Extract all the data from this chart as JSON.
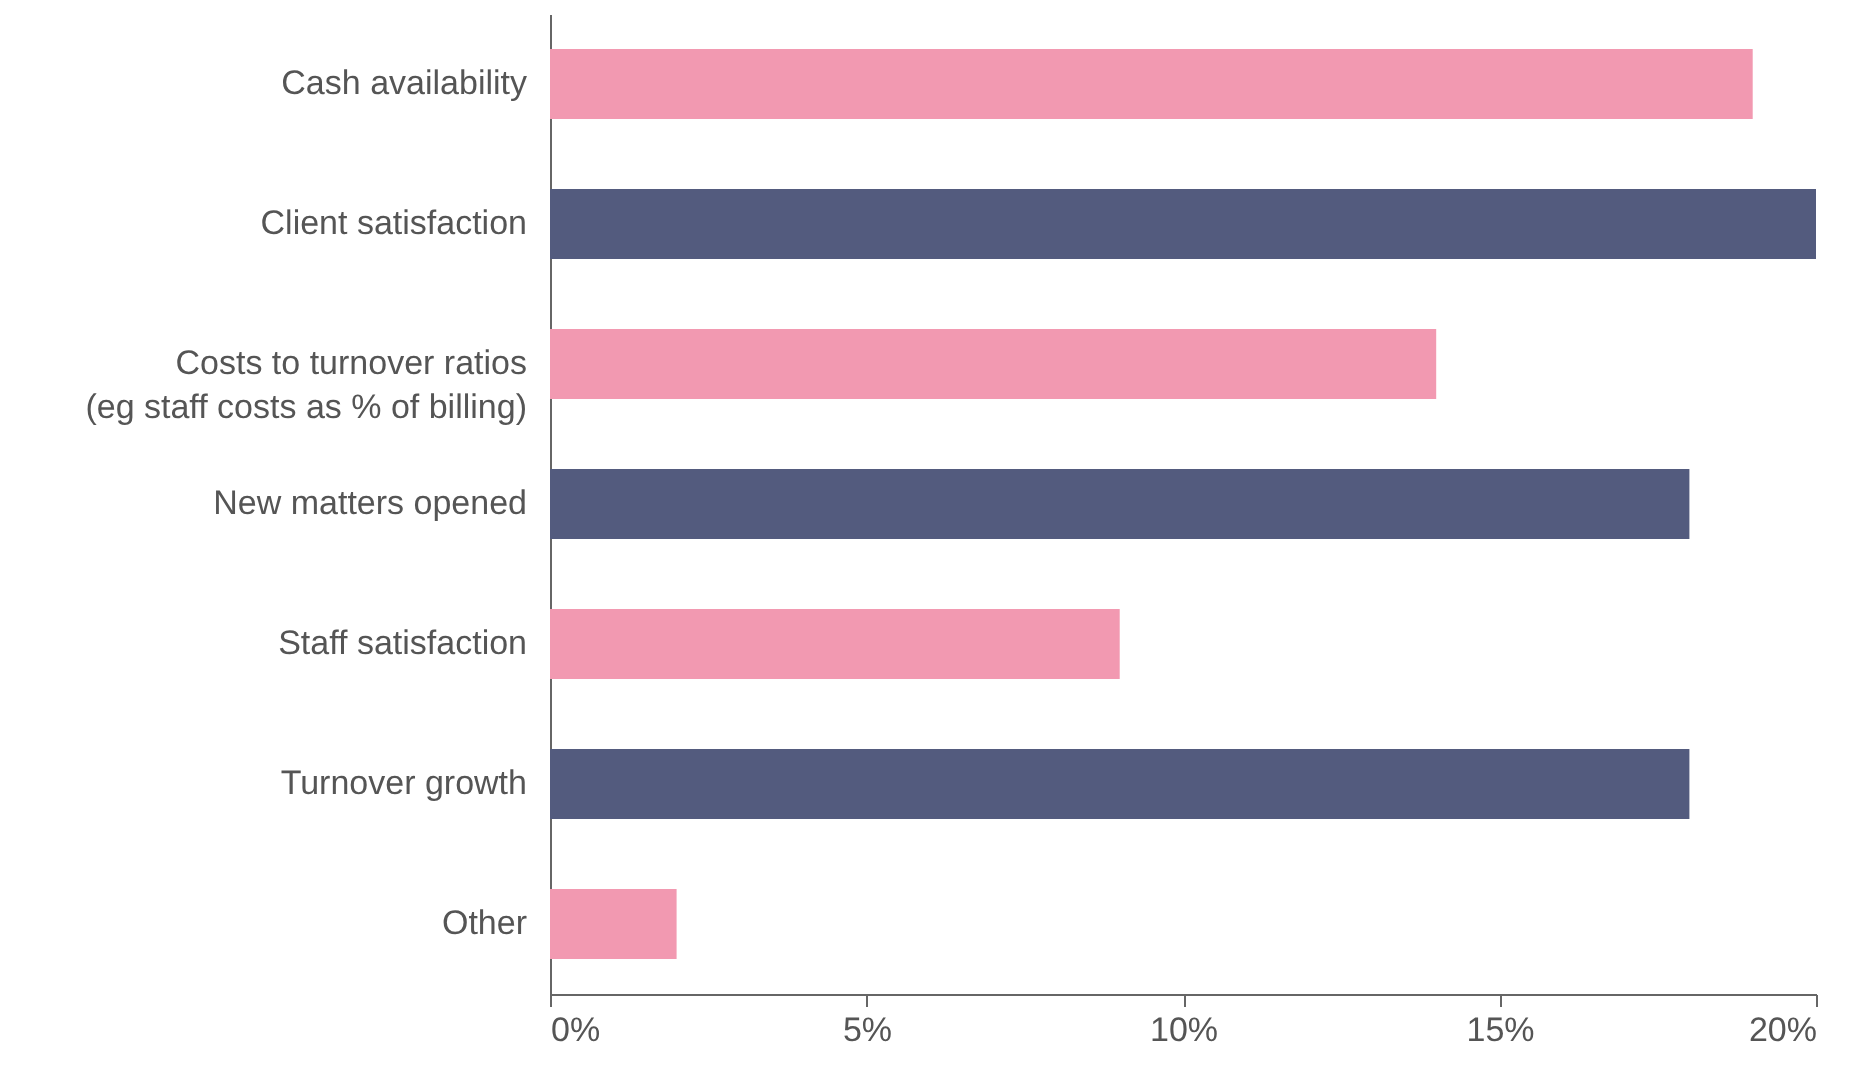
{
  "chart_data": {
    "type": "bar",
    "orientation": "horizontal",
    "categories": [
      "Cash availability",
      "Client satisfaction",
      "Costs to turnover ratios\n(eg staff costs as % of billing)",
      "New matters opened",
      "Staff satisfaction",
      "Turnover growth",
      "Other"
    ],
    "values": [
      19,
      20,
      14,
      18,
      9,
      18,
      2
    ],
    "colors": [
      "#f299b1",
      "#535b7e",
      "#f299b1",
      "#535b7e",
      "#f299b1",
      "#535b7e",
      "#f299b1"
    ],
    "xlim": [
      0,
      20
    ],
    "xticks": [
      {
        "value": 0,
        "label": "0%"
      },
      {
        "value": 5,
        "label": "5%"
      },
      {
        "value": 10,
        "label": "10%"
      },
      {
        "value": 15,
        "label": "15%"
      },
      {
        "value": 20,
        "label": "20%"
      }
    ],
    "grid": false
  }
}
